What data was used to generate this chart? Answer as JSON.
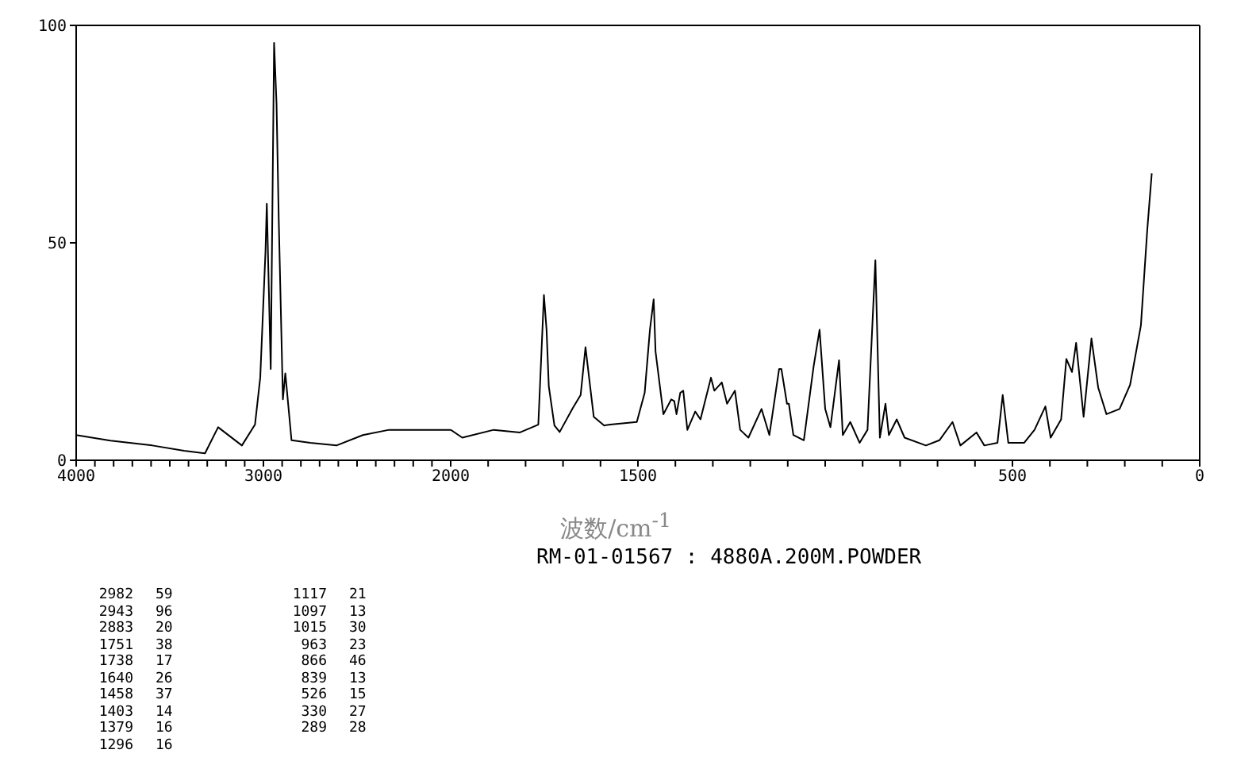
{
  "chart_data": [
    {
      "type": "line",
      "xlabel": "波数/cm$^{-1}$",
      "x": [
        4000,
        3817,
        3593,
        3424,
        3312,
        3242,
        3115,
        3045,
        3017,
        2989,
        2982,
        2961,
        2943,
        2930,
        2918,
        2896,
        2883,
        2850,
        2750,
        2610,
        2469,
        2329,
        2188,
        2000
      ],
      "series": [
        {
          "color": "#000000",
          "values": [
            5.8,
            4.5,
            3.4,
            2.2,
            1.6,
            7.6,
            3.4,
            8.2,
            19,
            48,
            59,
            21,
            96,
            82,
            55,
            14,
            20,
            4.6,
            4,
            3.4,
            5.8,
            7,
            7,
            7
          ]
        }
      ],
      "xlim": [
        4000,
        2000
      ],
      "xticks": [
        4000,
        {
          "value": 3900,
          "label": null
        },
        {
          "value": 3800,
          "label": null
        },
        {
          "value": 3700,
          "label": null
        },
        {
          "value": 3600,
          "label": null
        },
        {
          "value": 3500,
          "label": null
        },
        {
          "value": 3400,
          "label": null
        },
        {
          "value": 3300,
          "label": null
        },
        {
          "value": 3200,
          "label": null
        },
        {
          "value": 3100,
          "label": null
        },
        3000,
        {
          "value": 2900,
          "label": null
        },
        {
          "value": 2800,
          "label": null
        },
        {
          "value": 2700,
          "label": null
        },
        {
          "value": 2600,
          "label": null
        },
        {
          "value": 2500,
          "label": null
        },
        {
          "value": 2400,
          "label": null
        },
        {
          "value": 2300,
          "label": null
        },
        {
          "value": 2200,
          "label": null
        },
        {
          "value": 2100,
          "label": null
        },
        2000
      ],
      "ylim": [
        0,
        100
      ],
      "yticks": [
        0,
        50,
        100
      ],
      "annotations": [
        "RM-01-01567 : 4880A.200M.POWDER",
        "2982 59",
        "2943 96",
        "2883 20",
        "1751 38",
        "1738 17",
        "1640 26",
        "1458 37",
        "1403 14",
        "1379 16",
        "1296 16",
        "1117 21",
        "1097 13",
        "1015 30",
        "963 23",
        "866 46",
        "839 13",
        "526 15",
        "330 27",
        "289 28"
      ]
    },
    {
      "type": "line",
      "x": [
        2000,
        1969,
        1885,
        1815,
        1766,
        1751,
        1744,
        1738,
        1723,
        1709,
        1674,
        1653,
        1640,
        1618,
        1590,
        1574,
        1503,
        1482,
        1468,
        1458,
        1453,
        1432,
        1411,
        1403,
        1397,
        1387,
        1379,
        1368,
        1347,
        1333,
        1305,
        1296,
        1276,
        1262,
        1241,
        1227,
        1205,
        1170,
        1149,
        1123,
        1117,
        1102,
        1097,
        1085,
        1057,
        1031,
        1015,
        1000,
        986,
        963,
        953,
        933,
        908,
        887,
        866,
        854,
        839,
        830,
        809,
        788,
        731,
        695,
        660,
        639,
        596,
        575,
        540,
        526,
        511,
        469,
        441,
        412,
        398,
        370,
        356,
        341,
        330,
        310,
        289,
        271,
        249,
        214,
        186,
        157,
        140,
        128
      ],
      "series": [
        {
          "color": "#000000",
          "values": [
            7,
            5.2,
            7,
            6.4,
            8.2,
            38,
            30,
            17,
            8,
            6.5,
            12,
            15,
            26,
            10,
            8,
            8.2,
            8.8,
            15.5,
            30,
            37,
            25,
            10.6,
            14,
            13.6,
            10.6,
            15.5,
            16,
            7,
            11.2,
            9.4,
            19,
            16,
            17.9,
            13,
            16,
            7,
            5.2,
            11.8,
            5.8,
            21,
            21,
            13,
            13,
            5.8,
            4.6,
            21.5,
            30,
            11.8,
            7.6,
            23,
            5.8,
            8.8,
            4,
            7,
            46,
            5.2,
            13,
            5.8,
            9.4,
            5.2,
            3.4,
            4.6,
            8.8,
            3.4,
            6.4,
            3.4,
            4,
            15,
            4,
            4,
            7,
            12.4,
            5.2,
            9.4,
            23.3,
            20.3,
            27,
            10,
            28,
            16.7,
            10.6,
            11.8,
            17.3,
            31,
            53,
            66
          ]
        }
      ],
      "xlim": [
        2000,
        0
      ],
      "xticks": [
        {
          "value": 2000,
          "label": null
        },
        {
          "value": 1900,
          "label": null
        },
        {
          "value": 1800,
          "label": null
        },
        {
          "value": 1700,
          "label": null
        },
        {
          "value": 1600,
          "label": null
        },
        1500,
        {
          "value": 1400,
          "label": null
        },
        {
          "value": 1300,
          "label": null
        },
        {
          "value": 1200,
          "label": null
        },
        {
          "value": 1100,
          "label": null
        },
        {
          "value": 1000,
          "label": null
        },
        {
          "value": 900,
          "label": null
        },
        {
          "value": 800,
          "label": null
        },
        {
          "value": 700,
          "label": null
        },
        {
          "value": 600,
          "label": null
        },
        500,
        {
          "value": 400,
          "label": null
        },
        {
          "value": 300,
          "label": null
        },
        {
          "value": 200,
          "label": null
        },
        {
          "value": 100,
          "label": null
        },
        0
      ],
      "ylim": [
        0,
        100
      ],
      "tick_labels": "x"
    }
  ]
}
